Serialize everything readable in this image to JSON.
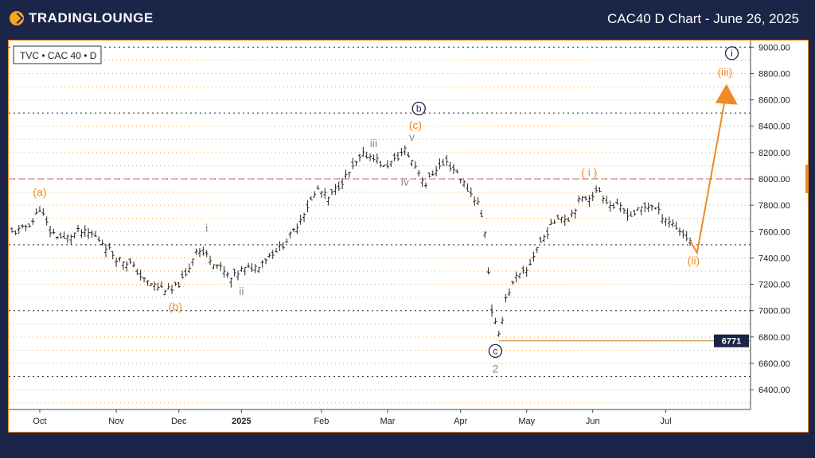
{
  "header": {
    "logo_text": "TRADINGLOUNGE",
    "title": "CAC40 D Chart - June 26, 2025"
  },
  "symbol_label": "TVC • CAC 40 • D",
  "colors": {
    "orange": "#f08a24",
    "navy": "#1b2547",
    "red_dashed": "#e06060",
    "gray": "#8a8a8a"
  },
  "chart_data": {
    "type": "candlestick",
    "x_ticks": [
      "Oct",
      "Nov",
      "Dec",
      "2025",
      "Feb",
      "Mar",
      "Apr",
      "May",
      "Jun",
      "Jul"
    ],
    "y_ticks": [
      "9000.00",
      "8800.00",
      "8600.00",
      "8400.00",
      "8200.00",
      "8000.00",
      "7800.00",
      "7600.00",
      "7400.00",
      "7200.00",
      "7000.00",
      "6800.00",
      "6600.00",
      "6400.00"
    ],
    "ylim": [
      6250,
      9050
    ],
    "price_line": {
      "value": 8000,
      "style": "dashed-red"
    },
    "price_tag": {
      "value": 6771,
      "label": "6771"
    },
    "series": [
      {
        "x": 0,
        "y": 7590
      },
      {
        "x": 3,
        "y": 7620
      },
      {
        "x": 6,
        "y": 7680
      },
      {
        "x": 8,
        "y": 7780
      },
      {
        "x": 11,
        "y": 7600
      },
      {
        "x": 15,
        "y": 7540
      },
      {
        "x": 19,
        "y": 7600
      },
      {
        "x": 23,
        "y": 7580
      },
      {
        "x": 26,
        "y": 7520
      },
      {
        "x": 30,
        "y": 7400
      },
      {
        "x": 34,
        "y": 7360
      },
      {
        "x": 38,
        "y": 7230
      },
      {
        "x": 42,
        "y": 7180
      },
      {
        "x": 46,
        "y": 7150
      },
      {
        "x": 50,
        "y": 7260
      },
      {
        "x": 53,
        "y": 7470
      },
      {
        "x": 57,
        "y": 7400
      },
      {
        "x": 60,
        "y": 7320
      },
      {
        "x": 63,
        "y": 7240
      },
      {
        "x": 66,
        "y": 7310
      },
      {
        "x": 70,
        "y": 7330
      },
      {
        "x": 74,
        "y": 7420
      },
      {
        "x": 78,
        "y": 7500
      },
      {
        "x": 81,
        "y": 7600
      },
      {
        "x": 84,
        "y": 7750
      },
      {
        "x": 88,
        "y": 7920
      },
      {
        "x": 91,
        "y": 7850
      },
      {
        "x": 94,
        "y": 7950
      },
      {
        "x": 98,
        "y": 8080
      },
      {
        "x": 101,
        "y": 8180
      },
      {
        "x": 104,
        "y": 8170
      },
      {
        "x": 107,
        "y": 8090
      },
      {
        "x": 110,
        "y": 8140
      },
      {
        "x": 113,
        "y": 8220
      },
      {
        "x": 116,
        "y": 8100
      },
      {
        "x": 119,
        "y": 7960
      },
      {
        "x": 122,
        "y": 8080
      },
      {
        "x": 125,
        "y": 8120
      },
      {
        "x": 128,
        "y": 8050
      },
      {
        "x": 131,
        "y": 7920
      },
      {
        "x": 134,
        "y": 7820
      },
      {
        "x": 136,
        "y": 7600
      },
      {
        "x": 138,
        "y": 7000
      },
      {
        "x": 140,
        "y": 6800
      },
      {
        "x": 142,
        "y": 7100
      },
      {
        "x": 145,
        "y": 7250
      },
      {
        "x": 148,
        "y": 7300
      },
      {
        "x": 151,
        "y": 7480
      },
      {
        "x": 154,
        "y": 7600
      },
      {
        "x": 157,
        "y": 7720
      },
      {
        "x": 160,
        "y": 7700
      },
      {
        "x": 163,
        "y": 7830
      },
      {
        "x": 166,
        "y": 7870
      },
      {
        "x": 169,
        "y": 7910
      },
      {
        "x": 172,
        "y": 7800
      },
      {
        "x": 175,
        "y": 7780
      },
      {
        "x": 178,
        "y": 7720
      },
      {
        "x": 181,
        "y": 7780
      },
      {
        "x": 184,
        "y": 7800
      },
      {
        "x": 187,
        "y": 7720
      },
      {
        "x": 190,
        "y": 7660
      },
      {
        "x": 193,
        "y": 7580
      },
      {
        "x": 195,
        "y": 7530
      }
    ],
    "projection": {
      "points": [
        [
          195,
          7530
        ],
        [
          197,
          7440
        ],
        [
          205,
          8600
        ]
      ]
    },
    "wave_labels": [
      {
        "text": "(a)",
        "x": 8,
        "y": 7870,
        "color": "orange"
      },
      {
        "text": "(b)",
        "x": 47,
        "y": 7000,
        "color": "orange"
      },
      {
        "text": "i",
        "x": 56,
        "y": 7600,
        "color": "gray"
      },
      {
        "text": "ii",
        "x": 66,
        "y": 7120,
        "color": "gray"
      },
      {
        "text": "iii",
        "x": 104,
        "y": 8240,
        "color": "gray"
      },
      {
        "text": "iv",
        "x": 113,
        "y": 7950,
        "color": "gray"
      },
      {
        "text": "v",
        "x": 115,
        "y": 8290,
        "color": "gray"
      },
      {
        "text": "(c)",
        "x": 116,
        "y": 8380,
        "color": "orange"
      },
      {
        "text": "b",
        "x": 117,
        "y": 8510,
        "color": "navy-circle"
      },
      {
        "text": "c",
        "x": 139,
        "y": 6670,
        "color": "navy-circle"
      },
      {
        "text": "2",
        "x": 139,
        "y": 6530,
        "color": "gray"
      },
      {
        "text": "( i )",
        "x": 166,
        "y": 8020,
        "color": "orange"
      },
      {
        "text": "(ii)",
        "x": 196,
        "y": 7350,
        "color": "orange"
      },
      {
        "text": "(iii)",
        "x": 205,
        "y": 8780,
        "color": "orange"
      },
      {
        "text": "i",
        "x": 207,
        "y": 8930,
        "color": "navy-circle"
      }
    ]
  }
}
